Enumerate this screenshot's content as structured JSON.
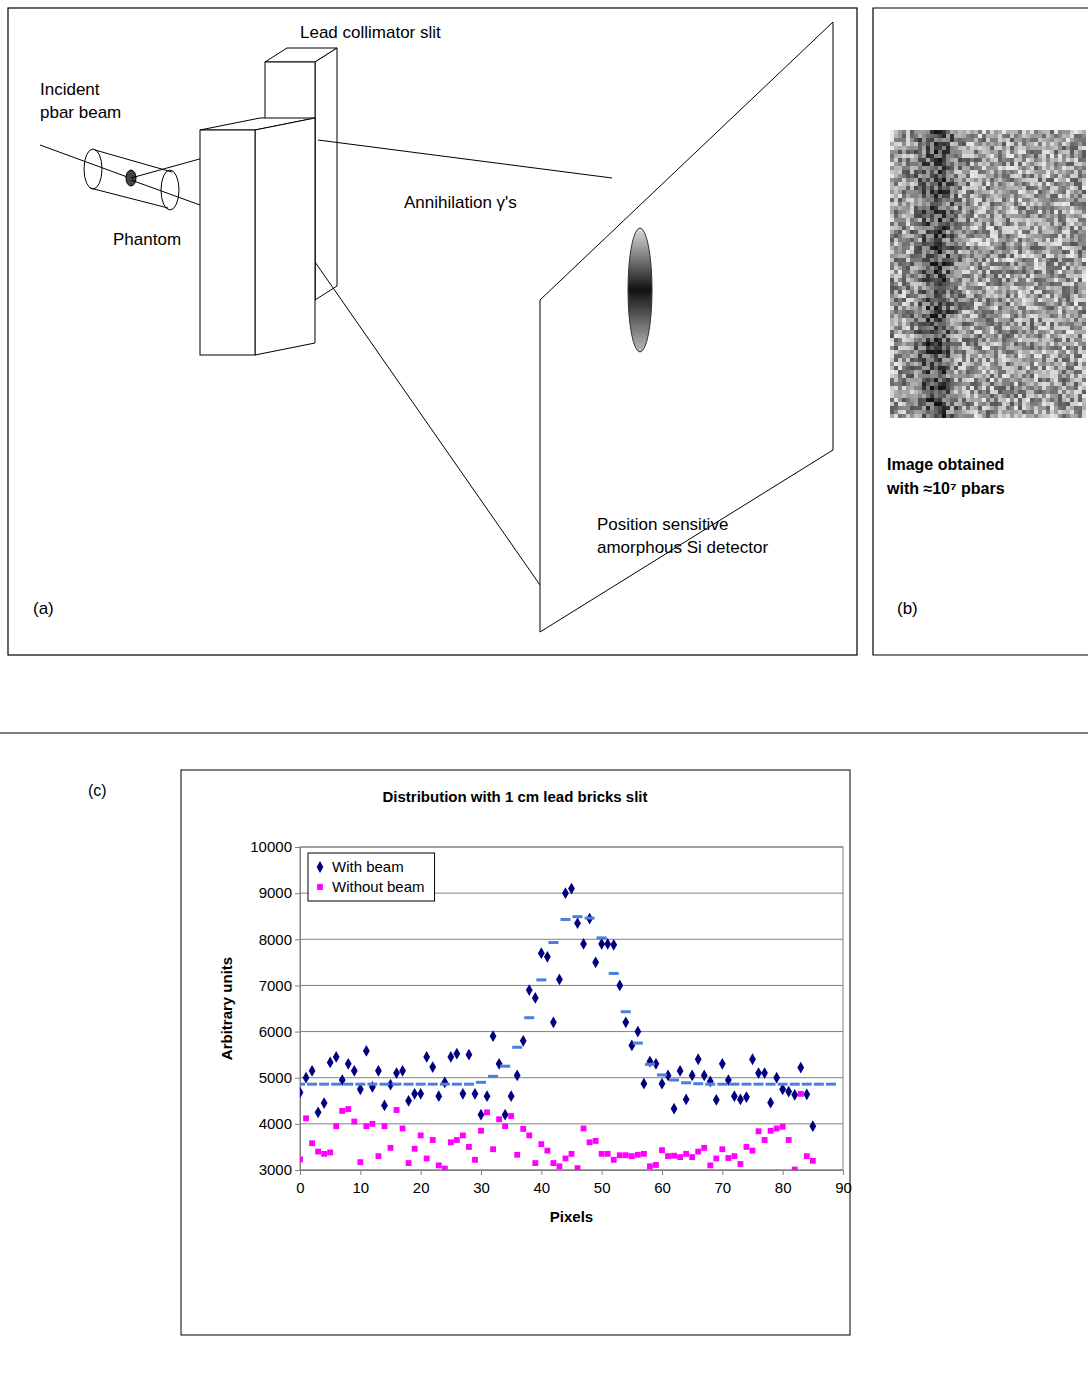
{
  "diagram": {
    "label": "(a)",
    "beam_label": [
      "Incident",
      "pbar beam"
    ],
    "collimator_label": "Lead collimator slit",
    "phantom_label": "Phantom",
    "gamma_label": "Annihilation γ's",
    "detector_label": [
      "Position sensitive",
      "amorphous Si detector"
    ]
  },
  "image_panel": {
    "label": "(b)",
    "caption": [
      "Image obtained",
      "with ≈10⁷ pbars"
    ]
  },
  "chart_label": "(c)",
  "chart_data": {
    "type": "scatter",
    "title": "Distribution with 1 cm lead bricks slit",
    "x_label": "Pixels",
    "y_label": "Arbitrary units",
    "xlim": [
      0,
      90
    ],
    "xticks": [
      0,
      10,
      20,
      30,
      40,
      50,
      60,
      70,
      80,
      90
    ],
    "ylim": [
      3000,
      10000
    ],
    "yticks": [
      3000,
      4000,
      5000,
      6000,
      7000,
      8000,
      9000,
      10000
    ],
    "grid": true,
    "legend": "upper left",
    "series": [
      {
        "name": "With beam",
        "color": "#000080",
        "marker": "diamond",
        "x": [
          0,
          1,
          2,
          3,
          4,
          5,
          6,
          7,
          8,
          9,
          10,
          11,
          12,
          13,
          14,
          15,
          16,
          17,
          18,
          19,
          20,
          21,
          22,
          23,
          24,
          25,
          26,
          27,
          28,
          29,
          30,
          31,
          32,
          33,
          34,
          35,
          36,
          37,
          38,
          39,
          40,
          41,
          42,
          43,
          44,
          45,
          46,
          47,
          48,
          49,
          50,
          51,
          52,
          53,
          54,
          55,
          56,
          57,
          58,
          59,
          60,
          61,
          62,
          63,
          64,
          65,
          66,
          67,
          68,
          69,
          70,
          71,
          72,
          73,
          74,
          75,
          76,
          77,
          78,
          79,
          80,
          81,
          82,
          83,
          84,
          85
        ],
        "values": [
          4680,
          5000,
          5150,
          4250,
          4450,
          5330,
          5450,
          4950,
          5300,
          5150,
          4750,
          5580,
          4800,
          5150,
          4400,
          4850,
          5100,
          5150,
          4500,
          4650,
          4650,
          5450,
          5230,
          4600,
          4900,
          5450,
          5520,
          4650,
          5500,
          4650,
          4200,
          4600,
          5900,
          5300,
          4200,
          4600,
          5050,
          5800,
          6900,
          6730,
          7700,
          7620,
          6200,
          7130,
          9000,
          9100,
          8350,
          7900,
          8450,
          7500,
          7900,
          7900,
          7880,
          7000,
          6200,
          5700,
          6000,
          4870,
          5350,
          5300,
          4870,
          5050,
          4330,
          5150,
          4530,
          5050,
          5400,
          5050,
          4920,
          4520,
          5300,
          4950,
          4600,
          4530,
          4580,
          5400,
          5100,
          5100,
          4460,
          5000,
          4750,
          4700,
          4630,
          5220,
          4640,
          3950
        ]
      },
      {
        "name": "Without beam",
        "color": "#ff00ff",
        "marker": "square",
        "x": [
          0,
          1,
          2,
          3,
          4,
          5,
          6,
          7,
          8,
          9,
          10,
          11,
          12,
          13,
          14,
          15,
          16,
          17,
          18,
          19,
          20,
          21,
          22,
          23,
          24,
          25,
          26,
          27,
          28,
          29,
          30,
          31,
          32,
          33,
          34,
          35,
          36,
          37,
          38,
          39,
          40,
          41,
          42,
          43,
          44,
          45,
          46,
          47,
          48,
          49,
          50,
          51,
          52,
          53,
          54,
          55,
          56,
          57,
          58,
          59,
          60,
          61,
          62,
          63,
          64,
          65,
          66,
          67,
          68,
          69,
          70,
          71,
          72,
          73,
          74,
          75,
          76,
          77,
          78,
          79,
          80,
          81,
          82,
          83,
          84,
          85
        ],
        "values": [
          3230,
          4120,
          3580,
          3400,
          3350,
          3380,
          3950,
          4280,
          4320,
          4050,
          3170,
          3950,
          4000,
          3300,
          3950,
          3480,
          4300,
          3900,
          3150,
          3460,
          3750,
          3250,
          3650,
          3100,
          3030,
          3600,
          3650,
          3750,
          3500,
          3220,
          3850,
          4250,
          3450,
          4100,
          3950,
          4170,
          3330,
          3890,
          3750,
          3150,
          3560,
          3420,
          3150,
          3080,
          3250,
          3350,
          3040,
          3900,
          3600,
          3630,
          3350,
          3350,
          3220,
          3320,
          3320,
          3300,
          3330,
          3350,
          3080,
          3110,
          3430,
          3300,
          3310,
          3280,
          3350,
          3280,
          3400,
          3480,
          3100,
          3250,
          3450,
          3260,
          3300,
          3130,
          3500,
          3420,
          3840,
          3650,
          3850,
          3900,
          3940,
          3650,
          3010,
          4650,
          3300,
          3200
        ]
      },
      {
        "color": "#4a7fe0",
        "marker": "dash",
        "x": [
          0,
          2,
          4,
          6,
          8,
          10,
          12,
          14,
          16,
          18,
          20,
          22,
          24,
          26,
          28,
          30,
          32,
          34,
          36,
          38,
          40,
          42,
          44,
          46,
          48,
          50,
          52,
          54,
          56,
          58,
          60,
          62,
          64,
          66,
          68,
          70,
          72,
          74,
          76,
          78,
          80,
          82,
          84,
          86,
          88
        ],
        "values": [
          4860,
          4860,
          4860,
          4860,
          4860,
          4860,
          4860,
          4860,
          4860,
          4860,
          4860,
          4860,
          4860,
          4860,
          4860,
          4900,
          5030,
          5250,
          5660,
          6300,
          7120,
          7930,
          8430,
          8490,
          8460,
          8030,
          7260,
          6430,
          5750,
          5290,
          5060,
          4950,
          4890,
          4870,
          4860,
          4860,
          4860,
          4860,
          4860,
          4860,
          4860,
          4860,
          4860,
          4860,
          4860
        ]
      }
    ]
  }
}
